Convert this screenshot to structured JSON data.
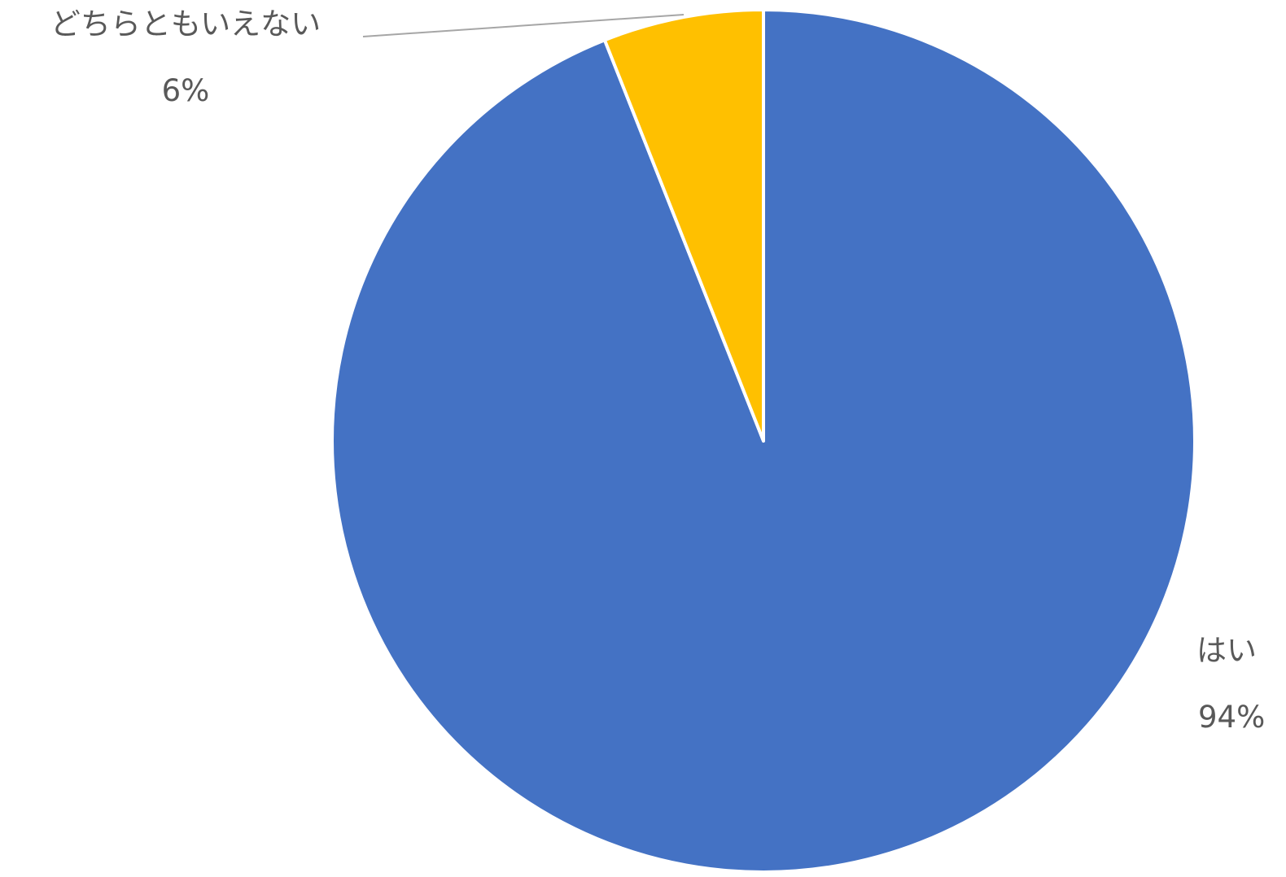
{
  "chart_data": {
    "type": "pie",
    "slices": [
      {
        "label": "はい",
        "value": 94,
        "value_label": "94%",
        "color": "#4472C4"
      },
      {
        "label": "どちらともいえない",
        "value": 6,
        "value_label": "6%",
        "color": "#FFC000"
      }
    ],
    "start_angle": "12 o'clock",
    "direction": "clockwise",
    "leader_line_color": "#A6A6A6",
    "label_color": "#595959",
    "slice_border_color": "#FFFFFF"
  }
}
